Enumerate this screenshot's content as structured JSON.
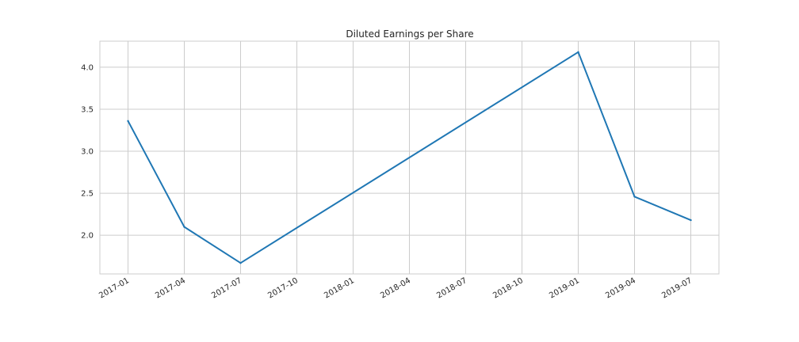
{
  "chart_data": {
    "type": "line",
    "title": "Diluted Earnings per Share",
    "xlabel": "",
    "ylabel": "",
    "x": [
      "2017-01",
      "2017-04",
      "2017-07",
      "2019-01",
      "2019-04",
      "2019-07"
    ],
    "series": [
      {
        "values": [
          3.36,
          2.1,
          1.67,
          4.18,
          2.46,
          2.18
        ],
        "color": "#1f77b4"
      }
    ],
    "x_ticks": [
      "2017-01",
      "2017-04",
      "2017-07",
      "2017-10",
      "2018-01",
      "2018-04",
      "2018-07",
      "2018-10",
      "2019-01",
      "2019-04",
      "2019-07"
    ],
    "y_ticks": [
      "2.0",
      "2.5",
      "3.0",
      "3.5",
      "4.0"
    ],
    "ylim": [
      1.54,
      4.31
    ],
    "grid": true,
    "legend": "none",
    "colors": {
      "grid": "#cccccc",
      "frame": "#cccccc",
      "text": "#262626"
    }
  }
}
